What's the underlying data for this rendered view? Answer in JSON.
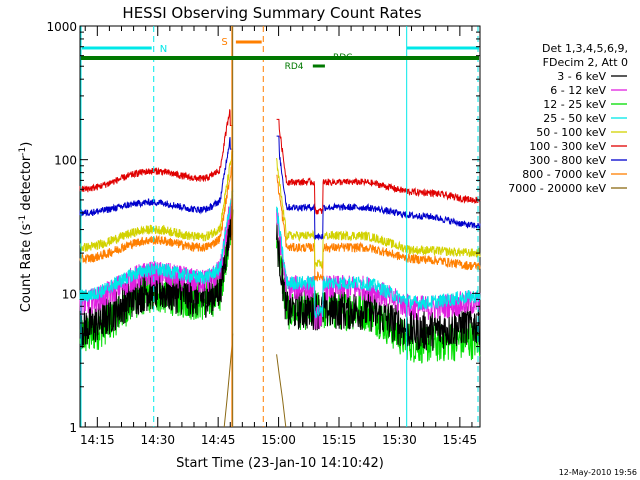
{
  "chart_data": {
    "type": "line",
    "title": "HESSI Observing Summary Count Rates",
    "xlabel": "Start Time (23-Jan-10 14:10:42)",
    "ylabel": "Count Rate (s⁻¹ detector⁻¹)",
    "ylabel_parts": {
      "pre": "Count Rate (s",
      "sup1": "-1",
      "mid": " detector",
      "sup2": "-1",
      "post": ")"
    },
    "yscale": "log",
    "ylim": [
      1,
      1000
    ],
    "y_ticks": [
      1,
      10,
      100,
      1000
    ],
    "y_tick_labels": [
      "1",
      "10",
      "100",
      "1000"
    ],
    "x_ticks": [
      "14:15",
      "14:30",
      "14:45",
      "15:00",
      "15:15",
      "15:30",
      "15:45"
    ],
    "x_tick_minutes": [
      15,
      30,
      45,
      60,
      75,
      90,
      105
    ],
    "xlim_minutes": [
      10.7,
      110.0
    ],
    "grid": false,
    "legend_header": [
      "Det 1,3,4,5,6,9,",
      "FDecim 2, Att 0"
    ],
    "legend_placement": "right",
    "series": [
      {
        "name": "3 - 6 keV",
        "color": "#000000",
        "key": "s1"
      },
      {
        "name": "6 - 12 keV",
        "color": "#e020e0",
        "key": "s2"
      },
      {
        "name": "12 - 25 keV",
        "color": "#00dd00",
        "key": "s3"
      },
      {
        "name": "25 - 50 keV",
        "color": "#00e8e8",
        "key": "s4"
      },
      {
        "name": "50 - 100 keV",
        "color": "#d2d200",
        "key": "s5"
      },
      {
        "name": "100 - 300 keV",
        "color": "#e00000",
        "key": "s6"
      },
      {
        "name": "300 - 800 keV",
        "color": "#0000cc",
        "key": "s7"
      },
      {
        "name": "800 - 7000 keV",
        "color": "#ff7f00",
        "key": "s8"
      },
      {
        "name": "7000 - 20000 keV",
        "color": "#8b6914",
        "key": "s9"
      }
    ],
    "levels": {
      "s1": [
        5.5,
        10.5,
        7.5,
        5.2,
        5.8
      ],
      "s2": [
        8.5,
        14,
        11,
        7.8,
        8.5
      ],
      "s3": [
        4.8,
        10,
        7.5,
        4.2,
        4.5
      ],
      "s4": [
        9.5,
        15,
        12,
        8.5,
        9.5
      ],
      "s5": [
        22,
        30,
        27,
        21,
        20
      ],
      "s6": [
        60,
        82,
        68,
        57,
        50
      ],
      "s7": [
        40,
        48,
        44,
        38,
        32
      ],
      "s8": [
        18,
        25,
        22,
        18,
        16
      ]
    },
    "peaks": {
      "s6": [
        180,
        200
      ],
      "s7": [
        120,
        150
      ]
    },
    "annotations": {
      "saa": "N",
      "flare": "S",
      "data_label_1": "RDC",
      "data_label_2": "RD4"
    },
    "timestamp": "12-May-2010 19:56"
  }
}
